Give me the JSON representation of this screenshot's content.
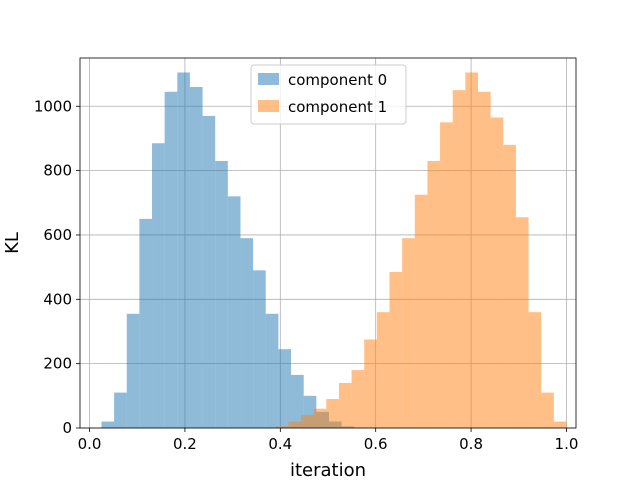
{
  "chart_data": {
    "type": "histogram",
    "xlabel": "iteration",
    "ylabel": "KL",
    "xlim": [
      -0.02,
      1.02
    ],
    "ylim": [
      0,
      1150
    ],
    "grid": true,
    "legend_position": "top-center",
    "x_ticks": [
      {
        "value": 0.0,
        "label": "0.0"
      },
      {
        "value": 0.2,
        "label": "0.2"
      },
      {
        "value": 0.4,
        "label": "0.4"
      },
      {
        "value": 0.6,
        "label": "0.6"
      },
      {
        "value": 0.8,
        "label": "0.8"
      },
      {
        "value": 1.0,
        "label": "1.0"
      }
    ],
    "y_ticks": [
      {
        "value": 0,
        "label": "0"
      },
      {
        "value": 200,
        "label": "200"
      },
      {
        "value": 400,
        "label": "400"
      },
      {
        "value": 600,
        "label": "600"
      },
      {
        "value": 800,
        "label": "800"
      },
      {
        "value": 1000,
        "label": "1000"
      }
    ],
    "series": [
      {
        "name": "component 0",
        "color": "#1f77b4",
        "opacity": 0.5,
        "bin_start": 0.025,
        "bin_width": 0.0265,
        "counts": [
          20,
          110,
          355,
          650,
          885,
          1045,
          1105,
          1060,
          970,
          830,
          720,
          590,
          490,
          355,
          245,
          165,
          100,
          50,
          20,
          5
        ]
      },
      {
        "name": "component 1",
        "color": "#ff7f0e",
        "opacity": 0.5,
        "bin_start": 0.3905,
        "bin_width": 0.0265,
        "counts": [
          5,
          20,
          40,
          60,
          90,
          140,
          180,
          275,
          360,
          485,
          590,
          725,
          830,
          950,
          1050,
          1105,
          1045,
          965,
          880,
          655,
          360,
          110,
          20
        ]
      }
    ]
  }
}
